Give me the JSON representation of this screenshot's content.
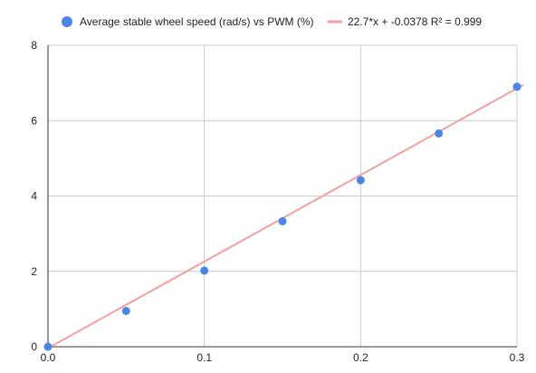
{
  "chart_data": {
    "type": "scatter",
    "title": "",
    "xlabel": "",
    "ylabel": "",
    "xlim": [
      0,
      0.3
    ],
    "ylim": [
      0,
      8
    ],
    "x_ticks": [
      {
        "value": 0,
        "label": "0.0"
      },
      {
        "value": 0.1,
        "label": "0.1"
      },
      {
        "value": 0.2,
        "label": "0.2"
      },
      {
        "value": 0.3,
        "label": "0.3"
      }
    ],
    "y_ticks": [
      {
        "value": 0,
        "label": "0"
      },
      {
        "value": 2,
        "label": "2"
      },
      {
        "value": 4,
        "label": "4"
      },
      {
        "value": 6,
        "label": "6"
      },
      {
        "value": 8,
        "label": "8"
      }
    ],
    "grid": true,
    "legend_position": "top",
    "series": [
      {
        "name": "Average stable wheel speed (rad/s) vs PWM (%)",
        "kind": "points",
        "color": "#4a86e8",
        "x": [
          0,
          0.05,
          0.1,
          0.15,
          0.2,
          0.25,
          0.3
        ],
        "y": [
          0,
          0.95,
          2.02,
          3.33,
          4.42,
          5.66,
          6.9
        ]
      },
      {
        "name": "22.7*x + -0.0378 R² = 0.999",
        "kind": "trendline",
        "color": "#f4a0a0",
        "slope": 22.7,
        "intercept": -0.0378
      }
    ]
  }
}
